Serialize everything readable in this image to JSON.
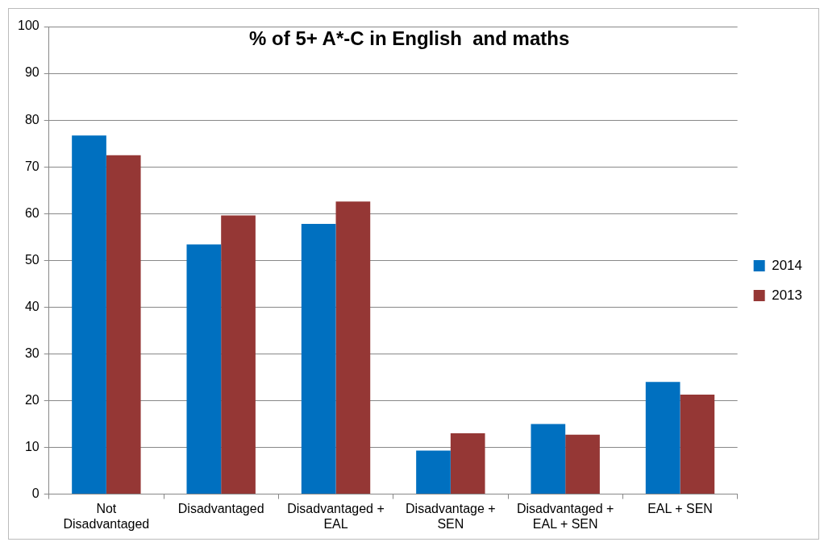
{
  "chart_data": {
    "type": "bar",
    "title": "% of 5+ A*-C in English  and maths",
    "categories": [
      "Not Disadvantaged",
      "Disadvantaged",
      "Disadvantaged + EAL",
      "Disadvantage + SEN",
      "Disadvantaged + EAL + SEN",
      "EAL + SEN"
    ],
    "series": [
      {
        "name": "2014",
        "color": "#0070c0",
        "values": [
          76.7,
          53.4,
          57.8,
          9.3,
          15.0,
          24.0
        ]
      },
      {
        "name": "2013",
        "color": "#953735",
        "values": [
          72.5,
          59.6,
          62.6,
          13.0,
          12.7,
          21.3
        ]
      }
    ],
    "ylim": [
      0,
      100
    ],
    "yticks": [
      0,
      10,
      20,
      30,
      40,
      50,
      60,
      70,
      80,
      90,
      100
    ],
    "grid": "y",
    "legend": "right"
  }
}
